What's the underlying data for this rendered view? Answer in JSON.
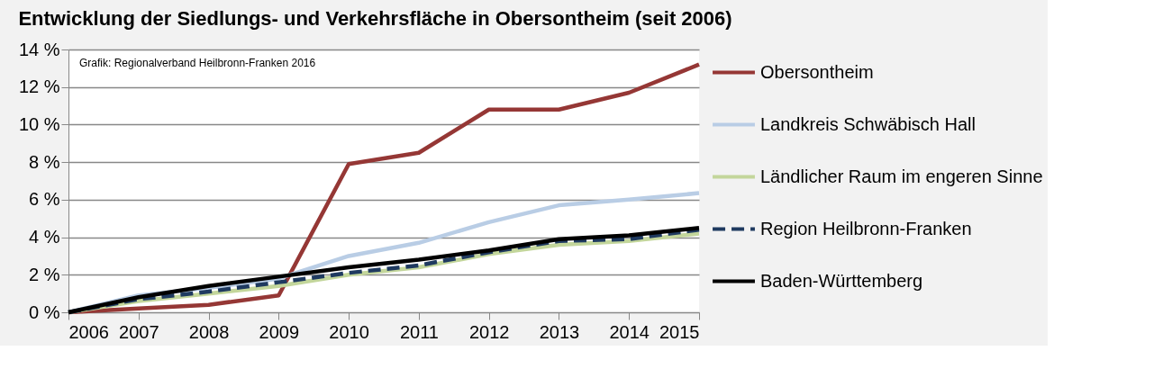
{
  "chart_data": {
    "type": "line",
    "title": "Entwicklung der Siedlungs- und Verkehrsfläche in Obersontheim (seit 2006)",
    "x": [
      2006,
      2007,
      2008,
      2009,
      2010,
      2011,
      2012,
      2013,
      2014,
      2015
    ],
    "series": [
      {
        "name": "Obersontheim",
        "color": "#953735",
        "line_style": "solid",
        "values": [
          0,
          0.2,
          0.4,
          0.9,
          7.9,
          8.5,
          10.8,
          10.8,
          11.7,
          13.2
        ]
      },
      {
        "name": "Landkreis Schwäbisch Hall",
        "color": "#b9cde5",
        "line_style": "solid",
        "values": [
          0,
          0.9,
          1.3,
          1.8,
          3.0,
          3.7,
          4.8,
          5.7,
          6.0,
          6.35
        ]
      },
      {
        "name": "Ländlicher Raum im engeren Sinne",
        "color": "#c3d69b",
        "line_style": "solid",
        "values": [
          0,
          0.6,
          1.0,
          1.4,
          2.0,
          2.4,
          3.1,
          3.6,
          3.8,
          4.2
        ]
      },
      {
        "name": "Region Heilbronn-Franken",
        "color": "#1f3a60",
        "line_style": "dashed",
        "values": [
          0,
          0.7,
          1.1,
          1.6,
          2.1,
          2.5,
          3.2,
          3.8,
          3.9,
          4.4
        ]
      },
      {
        "name": "Baden-Württemberg",
        "color": "#000000",
        "line_style": "solid",
        "values": [
          0,
          0.8,
          1.4,
          1.9,
          2.4,
          2.8,
          3.3,
          3.9,
          4.1,
          4.5
        ]
      }
    ],
    "xlim": [
      2006,
      2015
    ],
    "xticks": [
      2006,
      2007,
      2008,
      2009,
      2010,
      2011,
      2012,
      2013,
      2014,
      2015
    ],
    "ylim": [
      0,
      14
    ],
    "yticks": [
      {
        "value": 0,
        "label": "0 %"
      },
      {
        "value": 2,
        "label": "2 %"
      },
      {
        "value": 4,
        "label": "4 %"
      },
      {
        "value": 6,
        "label": "6 %"
      },
      {
        "value": 8,
        "label": "8 %"
      },
      {
        "value": 10,
        "label": "10 %"
      },
      {
        "value": 12,
        "label": "12 %"
      },
      {
        "value": 14,
        "label": "14 %"
      }
    ],
    "annotations": [
      "Grafik: Regionalverband Heilbronn-Franken 2016"
    ],
    "grid": "y",
    "legend": "right"
  }
}
